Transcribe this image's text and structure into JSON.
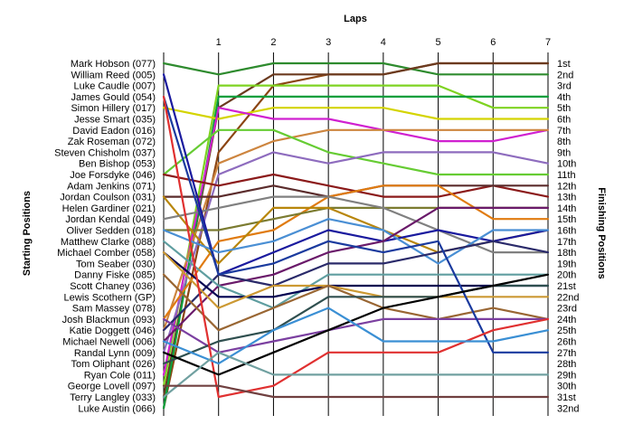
{
  "chart_data": {
    "type": "line",
    "x_title": "Laps",
    "left_title": "Starting Positions",
    "right_title": "Finishing Positions",
    "x_ticks": [
      "1",
      "2",
      "3",
      "4",
      "5",
      "6",
      "7"
    ],
    "x_range": [
      0,
      7
    ],
    "y_range": [
      1,
      32
    ],
    "y_inverted": true,
    "grid": "vertical lines at each lap",
    "legend": "none",
    "drivers": [
      "Mark Hobson (077)",
      "William Reed (005)",
      "Luke Caudle (007)",
      "James Gould (054)",
      "Simon Hillery (017)",
      "Jesse Smart (035)",
      "David Eadon (016)",
      "Zak Roseman (072)",
      "Steven Chisholm (037)",
      "Ben Bishop (053)",
      "Joe Forsdyke (046)",
      "Adam Jenkins (071)",
      "Jordan Coulson (031)",
      "Helen Gardiner (021)",
      "Jordan Kendal (049)",
      "Oliver Sedden (018)",
      "Matthew Clarke (088)",
      "Michael Comber (058)",
      "Tom Seaber (030)",
      "Danny Fiske (085)",
      "Scott Chaney (036)",
      "Lewis Scothern (GP)",
      "Sam Massey (078)",
      "Josh Blackmun (093)",
      "Katie Doggett (046)",
      "Michael Newell (006)",
      "Randal Lynn (009)",
      "Tom Oliphant (026)",
      "Ryan Cole (011)",
      "George Lovell (097)",
      "Terry Langley (033)",
      "Luke Austin (066)"
    ],
    "finish_labels": [
      "1st",
      "2nd",
      "3rd",
      "4th",
      "5th",
      "6th",
      "7th",
      "8th",
      "9th",
      "10th",
      "11th",
      "12th",
      "13th",
      "14th",
      "15th",
      "16th",
      "17th",
      "18th",
      "19th",
      "20th",
      "21st",
      "22nd",
      "23rd",
      "24th",
      "25th",
      "26th",
      "27th",
      "28th",
      "29th",
      "30th",
      "31st",
      "32nd"
    ],
    "series": [
      {
        "color": "#8b4513",
        "values": [
          32,
          9,
          3,
          2,
          2,
          1,
          1,
          1
        ]
      },
      {
        "color": "#2e8b2e",
        "values": [
          1,
          2,
          1,
          1,
          1,
          2,
          2,
          2
        ]
      },
      {
        "color": "#6b3a1f",
        "values": [
          31,
          5,
          2,
          2,
          2,
          1,
          1,
          1
        ]
      },
      {
        "color": "#7ed321",
        "values": [
          30,
          3,
          3,
          3,
          3,
          3,
          5,
          5
        ]
      },
      {
        "color": "#0a9e3c",
        "values": [
          32,
          4,
          4,
          4,
          4,
          4,
          4,
          4
        ]
      },
      {
        "color": "#d4d400",
        "values": [
          5,
          6,
          5,
          5,
          5,
          6,
          6,
          6
        ]
      },
      {
        "color": "#d020d0",
        "values": [
          29,
          5,
          6,
          6,
          7,
          8,
          8,
          7
        ]
      },
      {
        "color": "#cd853f",
        "values": [
          25,
          10,
          8,
          7,
          7,
          7,
          7,
          7
        ]
      },
      {
        "color": "#66cc33",
        "values": [
          11,
          7,
          7,
          9,
          10,
          11,
          11,
          11
        ]
      },
      {
        "color": "#8e6cbe",
        "values": [
          27,
          11,
          9,
          10,
          9,
          9,
          9,
          10
        ]
      },
      {
        "color": "#8b1a1a",
        "values": [
          11,
          12,
          11,
          12,
          13,
          13,
          12,
          13
        ]
      },
      {
        "color": "#5b2c2c",
        "values": [
          13,
          13,
          12,
          13,
          12,
          12,
          12,
          12
        ]
      },
      {
        "color": "#e07b10",
        "values": [
          24,
          17,
          16,
          13,
          12,
          12,
          15,
          15
        ]
      },
      {
        "color": "#7b7b30",
        "values": [
          16,
          16,
          15,
          14,
          14,
          14,
          14,
          14
        ]
      },
      {
        "color": "#b8860b",
        "values": [
          13,
          19,
          14,
          14,
          16,
          18,
          17,
          16
        ]
      },
      {
        "color": "#808080",
        "values": [
          15,
          14,
          13,
          13,
          14,
          16,
          18,
          18
        ]
      },
      {
        "color": "#1a1a9e",
        "values": [
          2,
          20,
          18,
          16,
          17,
          16,
          17,
          16
        ]
      },
      {
        "color": "#4a8fd4",
        "values": [
          16,
          18,
          17,
          15,
          16,
          19,
          16,
          16
        ]
      },
      {
        "color": "#6a1a6a",
        "values": [
          26,
          21,
          20,
          18,
          17,
          14,
          14,
          14
        ]
      },
      {
        "color": "#2a2a6a",
        "values": [
          25,
          20,
          21,
          19,
          19,
          18,
          17,
          18
        ]
      },
      {
        "color": "#5f9ea0",
        "values": [
          17,
          21,
          23,
          20,
          20,
          20,
          20,
          20
        ]
      },
      {
        "color": "#000050",
        "values": [
          18,
          22,
          22,
          21,
          21,
          21,
          21,
          21
        ]
      },
      {
        "color": "#cc9933",
        "values": [
          18,
          23,
          21,
          21,
          22,
          22,
          22,
          22
        ]
      },
      {
        "color": "#996633",
        "values": [
          20,
          25,
          23,
          21,
          23,
          24,
          23,
          24
        ]
      },
      {
        "color": "#7b3fa0",
        "values": [
          24,
          27,
          26,
          25,
          24,
          24,
          24,
          24
        ]
      },
      {
        "color": "#2f4f4f",
        "values": [
          28,
          26,
          25,
          22,
          22,
          22,
          21,
          21
        ]
      },
      {
        "color": "#1a3a9e",
        "values": [
          4,
          20,
          19,
          17,
          18,
          17,
          27,
          27
        ]
      },
      {
        "color": "#e03030",
        "values": [
          4,
          31,
          30,
          27,
          27,
          27,
          25,
          24
        ]
      },
      {
        "color": "#000000",
        "values": [
          27,
          29,
          27,
          25,
          23,
          22,
          21,
          20
        ]
      },
      {
        "color": "#3a8fd4",
        "values": [
          26,
          28,
          25,
          23,
          26,
          26,
          26,
          25
        ]
      },
      {
        "color": "#70a0a0",
        "values": [
          31,
          27,
          29,
          29,
          29,
          29,
          29,
          29
        ]
      },
      {
        "color": "#704040",
        "values": [
          30,
          30,
          31,
          31,
          31,
          31,
          31,
          31
        ]
      }
    ]
  }
}
